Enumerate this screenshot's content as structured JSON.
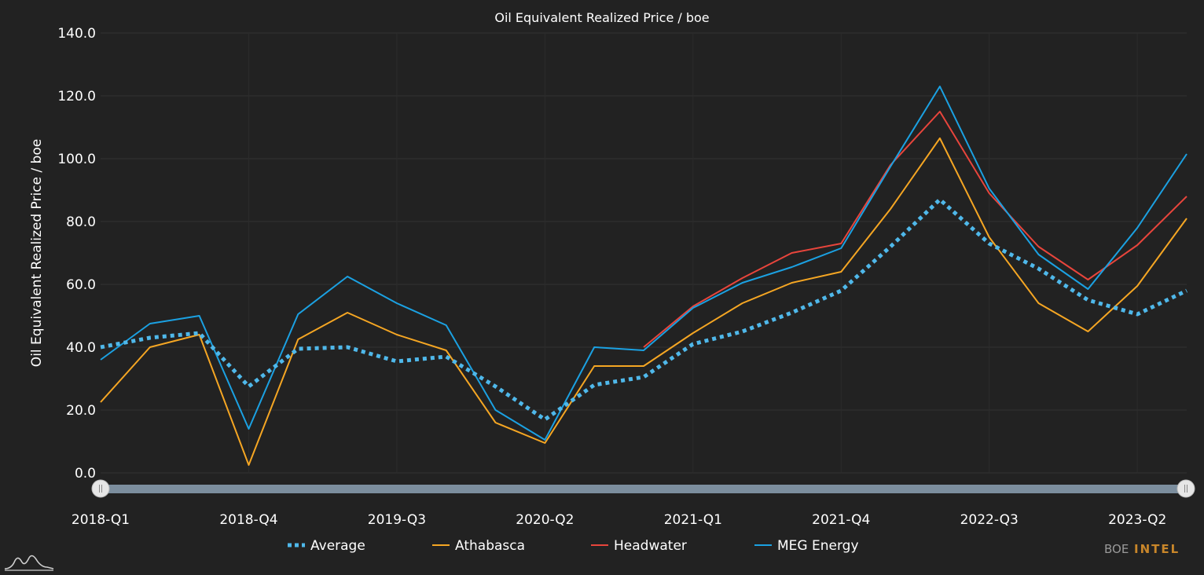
{
  "chart_data": {
    "type": "line",
    "title": "Oil Equivalent Realized Price / boe",
    "ylabel": "Oil Equivalent Realized Price / boe",
    "xlabel": "",
    "ylim": [
      0,
      140
    ],
    "yticks": [
      "0.0",
      "20.0",
      "40.0",
      "60.0",
      "80.0",
      "100.0",
      "120.0",
      "140.0"
    ],
    "categories": [
      "2018-Q1",
      "2018-Q2",
      "2018-Q3",
      "2018-Q4",
      "2019-Q1",
      "2019-Q2",
      "2019-Q3",
      "2019-Q4",
      "2020-Q1",
      "2020-Q2",
      "2020-Q3",
      "2020-Q4",
      "2021-Q1",
      "2021-Q2",
      "2021-Q3",
      "2021-Q4",
      "2022-Q1",
      "2022-Q2",
      "2022-Q3",
      "2022-Q4",
      "2023-Q1",
      "2023-Q2",
      "2023-Q3"
    ],
    "xtick_labels": [
      "2018-Q1",
      "2018-Q4",
      "2019-Q3",
      "2020-Q2",
      "2021-Q1",
      "2021-Q4",
      "2022-Q3",
      "2023-Q2"
    ],
    "grid": true,
    "legend_position": "bottom",
    "series": [
      {
        "name": "Average",
        "color": "#4fb8ea",
        "style": "dotted",
        "values": [
          40,
          43,
          44.5,
          27.5,
          39.5,
          40,
          35.5,
          37,
          27.5,
          17,
          28,
          30.5,
          41,
          45,
          51,
          58,
          72,
          87,
          73,
          65,
          55,
          50.5,
          58
        ]
      },
      {
        "name": "Athabasca",
        "color": "#f5a623",
        "style": "solid",
        "values": [
          22.5,
          40,
          44,
          2.5,
          42.5,
          51,
          44,
          39,
          16,
          9.5,
          34,
          34,
          44.5,
          54,
          60.5,
          64,
          84,
          106.5,
          75,
          54,
          45,
          59.5,
          81
        ]
      },
      {
        "name": "Headwater",
        "color": "#e8453c",
        "style": "solid",
        "values": [
          null,
          null,
          null,
          null,
          null,
          null,
          null,
          null,
          null,
          null,
          null,
          40,
          53,
          62,
          70,
          73,
          98,
          115,
          89,
          72,
          61.5,
          72.5,
          88
        ]
      },
      {
        "name": "MEG Energy",
        "color": "#1ba1e2",
        "style": "solid",
        "values": [
          36,
          47.5,
          50,
          14,
          50.5,
          62.5,
          54,
          47,
          20,
          10.5,
          40,
          39,
          52.5,
          60.5,
          65.5,
          71.5,
          97.5,
          123,
          90.5,
          69.5,
          58.5,
          78,
          101.5
        ]
      }
    ]
  },
  "slider": {
    "left_value": 0,
    "right_value": 1
  },
  "brand": {
    "prefix": "BOE",
    "suffix": "INTEL"
  },
  "logo_icon": "mountain-logo-icon"
}
